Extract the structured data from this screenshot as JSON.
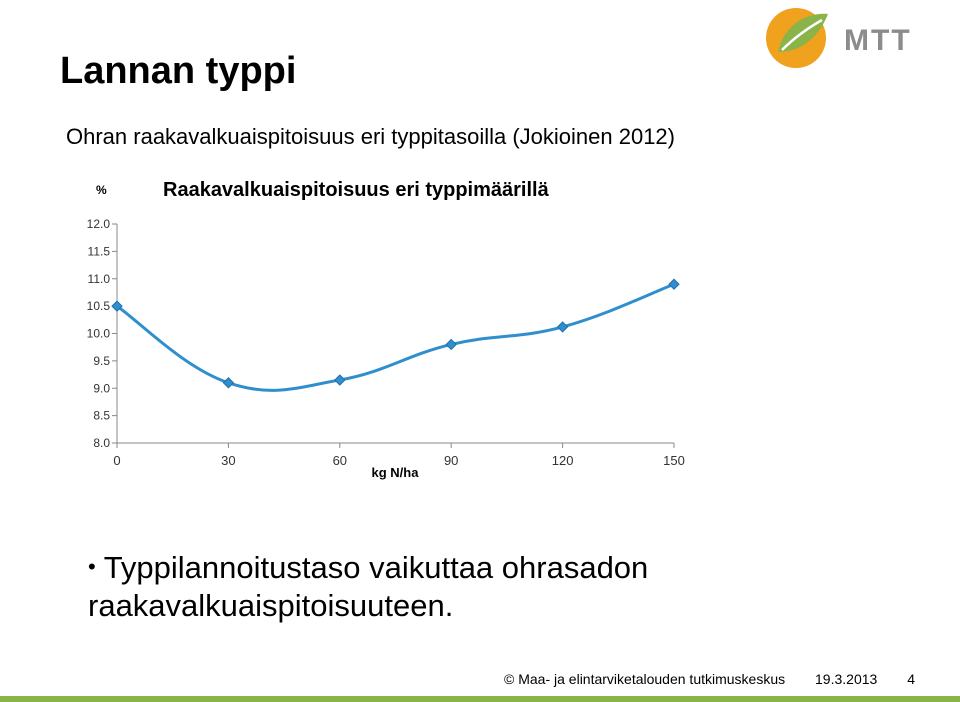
{
  "slide": {
    "title": "Lannan typpi",
    "subtitle": "Ohran raakavalkuaispitoisuus eri typpitasoilla (Jokioinen 2012)",
    "bullet": "Typpilannoitustaso vaikuttaa ohrasadon raakavalkuaispitoisuuteen.",
    "footer": {
      "copyright": "© Maa- ja elintarviketalouden tutkimuskeskus",
      "date": "19.3.2013",
      "page": "4"
    },
    "logo_text": "MTT",
    "colors": {
      "line": "#2f8fce",
      "accent_green": "#8ab34a",
      "logo_orange": "#f0a11e",
      "logo_grey": "#8c8c8c"
    }
  },
  "chart_data": {
    "type": "line",
    "title": "Raakavalkuaispitoisuus eri typpimäärillä",
    "xlabel": "kg N/ha",
    "ylabel": "%",
    "x": [
      0,
      30,
      60,
      90,
      120,
      150
    ],
    "series": [
      {
        "values": [
          10.5,
          9.1,
          9.15,
          9.8,
          10.12,
          10.9
        ]
      }
    ],
    "xlim": [
      0,
      150
    ],
    "ylim": [
      8.0,
      12.0
    ],
    "yticks": [
      "12.0",
      "11.5",
      "11.0",
      "10.5",
      "10.0",
      "9.5",
      "9.0",
      "8.5",
      "8.0"
    ],
    "xticks": [
      "0",
      "30",
      "60",
      "90",
      "120",
      "150"
    ],
    "grid": false,
    "legend": "none",
    "smooth": true
  }
}
